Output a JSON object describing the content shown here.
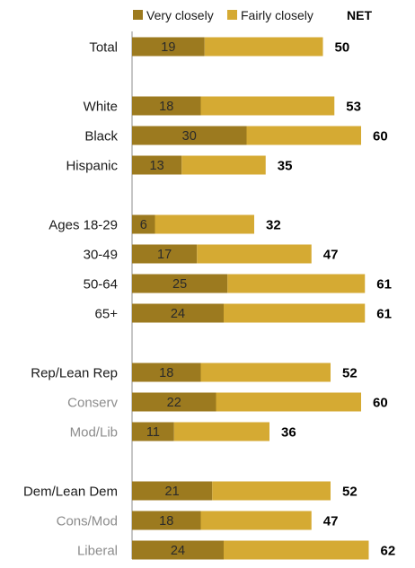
{
  "chart_data": {
    "type": "bar",
    "orientation": "horizontal",
    "stacked": true,
    "legend": {
      "position": "top",
      "very_label": "Very closely",
      "fairly_label": "Fairly closely",
      "net_label": "NET"
    },
    "colors": {
      "very": "#9c7a1f",
      "fairly": "#d5aa33",
      "axis": "#8c8c8c"
    },
    "xlim": [
      0,
      62
    ],
    "rows": [
      {
        "label": "Total",
        "very": 19,
        "net": 50,
        "sub": false,
        "group": 0
      },
      {
        "label": "White",
        "very": 18,
        "net": 53,
        "sub": false,
        "group": 1
      },
      {
        "label": "Black",
        "very": 30,
        "net": 60,
        "sub": false,
        "group": 1
      },
      {
        "label": "Hispanic",
        "very": 13,
        "net": 35,
        "sub": false,
        "group": 1
      },
      {
        "label": "Ages 18-29",
        "very": 6,
        "net": 32,
        "sub": false,
        "group": 2
      },
      {
        "label": "30-49",
        "very": 17,
        "net": 47,
        "sub": false,
        "group": 2
      },
      {
        "label": "50-64",
        "very": 25,
        "net": 61,
        "sub": false,
        "group": 2
      },
      {
        "label": "65+",
        "very": 24,
        "net": 61,
        "sub": false,
        "group": 2
      },
      {
        "label": "Rep/Lean Rep",
        "very": 18,
        "net": 52,
        "sub": false,
        "group": 3
      },
      {
        "label": "Conserv",
        "very": 22,
        "net": 60,
        "sub": true,
        "group": 3
      },
      {
        "label": "Mod/Lib",
        "very": 11,
        "net": 36,
        "sub": true,
        "group": 3
      },
      {
        "label": "Dem/Lean Dem",
        "very": 21,
        "net": 52,
        "sub": false,
        "group": 4
      },
      {
        "label": "Cons/Mod",
        "very": 18,
        "net": 47,
        "sub": true,
        "group": 4
      },
      {
        "label": "Liberal",
        "very": 24,
        "net": 62,
        "sub": true,
        "group": 4
      }
    ]
  }
}
